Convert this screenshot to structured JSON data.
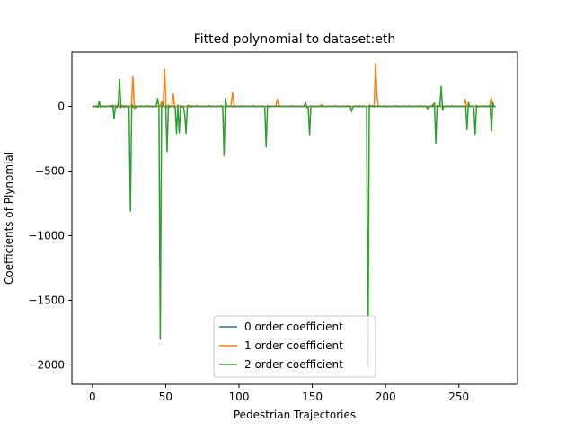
{
  "chart_data": {
    "type": "line",
    "title": "Fitted polynomial to dataset:eth",
    "xlabel": "Pedestrian Trajectories",
    "ylabel": "Coefficients of Plynomial",
    "xlim": [
      -14,
      290
    ],
    "ylim": [
      -2150,
      420
    ],
    "x_ticks": [
      0,
      50,
      100,
      150,
      200,
      250
    ],
    "x_tick_labels": [
      "0",
      "50",
      "100",
      "150",
      "200",
      "250"
    ],
    "y_ticks": [
      0,
      -500,
      -1000,
      -1500,
      -2000
    ],
    "y_tick_labels": [
      "0",
      "−500",
      "−1000",
      "−1500",
      "−2000"
    ],
    "grid": false,
    "legend_position": "lower-center",
    "x_range": [
      0,
      275
    ],
    "series": [
      {
        "name": "0 order coefficient",
        "color": "#1f77b4",
        "values": [
          0,
          0,
          0,
          0,
          0,
          0,
          0,
          0,
          0,
          0,
          0,
          0,
          0,
          0,
          0,
          0,
          0,
          0,
          0,
          0,
          0,
          0,
          0,
          0,
          0,
          0,
          0,
          0,
          0,
          0,
          0,
          0,
          0,
          0,
          0,
          0,
          0,
          0,
          0,
          0,
          0,
          0,
          0,
          0,
          0,
          0,
          0,
          0,
          0,
          0,
          0,
          0,
          0,
          0,
          0,
          0,
          0,
          0,
          0,
          0,
          0,
          0,
          0,
          0,
          0,
          0,
          0,
          0,
          0,
          0,
          0,
          0,
          0,
          0,
          0,
          0,
          0,
          0,
          0,
          0,
          0,
          0,
          0,
          0,
          0,
          0,
          0,
          0,
          0,
          0,
          0,
          0,
          0,
          0,
          0,
          0,
          0,
          0,
          0,
          0,
          0,
          0,
          0,
          0,
          0,
          0,
          0,
          0,
          0,
          0,
          0,
          0,
          0,
          0,
          0,
          0,
          0,
          0,
          0,
          0,
          0,
          0,
          0,
          0,
          0,
          0,
          0,
          0,
          0,
          0,
          0,
          0,
          0,
          0,
          0,
          0,
          0,
          0,
          0,
          0,
          0,
          0,
          0,
          0,
          0,
          0,
          0,
          0,
          0,
          0,
          0,
          0,
          0,
          0,
          0,
          0,
          0,
          0,
          0,
          0,
          0,
          0,
          0,
          0,
          0,
          0,
          0,
          0,
          0,
          0,
          0,
          0,
          0,
          0,
          0,
          0,
          0,
          0,
          0,
          0,
          0,
          0,
          0,
          0,
          0,
          0,
          0,
          0,
          0,
          0,
          0,
          0,
          0,
          0,
          0,
          0,
          0,
          0,
          0,
          0,
          0,
          0,
          0,
          0,
          0,
          0,
          0,
          0,
          0,
          0,
          0,
          0,
          0,
          0,
          0,
          0,
          0,
          0,
          0,
          0,
          0,
          0,
          0,
          0,
          0,
          0,
          0,
          0,
          0,
          0,
          0,
          0,
          0,
          0,
          0,
          0,
          0,
          0,
          0,
          0,
          0,
          0,
          0,
          0,
          0,
          0,
          0,
          0,
          0,
          0,
          0,
          0,
          0,
          0,
          0,
          0,
          0,
          0,
          0,
          0,
          0,
          0,
          0,
          0,
          0,
          0,
          0,
          0,
          0
        ]
      },
      {
        "name": "1 order coefficient",
        "color": "#ff7f0e",
        "values": [
          0,
          2,
          1,
          -3,
          2,
          5,
          -2,
          1,
          3,
          -1,
          0,
          2,
          1,
          -3,
          2,
          4,
          0,
          3,
          15,
          -5,
          0,
          8,
          -10,
          5,
          2,
          -3,
          0,
          1,
          230,
          -20,
          5,
          3,
          -2,
          1,
          0,
          2,
          -1,
          0,
          3,
          1,
          -2,
          2,
          0,
          1,
          2,
          -1,
          0,
          3,
          40,
          10,
          285,
          -15,
          3,
          2,
          -1,
          5,
          95,
          -10,
          2,
          1,
          0,
          3,
          -2,
          1,
          0,
          2,
          -1,
          10,
          0,
          3,
          2,
          -1,
          5,
          0,
          1,
          2,
          -3,
          1,
          0,
          2,
          1,
          0,
          -1,
          2,
          0,
          1,
          3,
          -2,
          0,
          1,
          2,
          0,
          -1,
          1,
          0,
          2,
          1,
          110,
          20,
          -5,
          3,
          0,
          2,
          -1,
          1,
          0,
          3,
          -1,
          2,
          0,
          1,
          2,
          0,
          -1,
          1,
          0,
          3,
          1,
          -2,
          0,
          1,
          2,
          0,
          -1,
          1,
          0,
          3,
          1,
          55,
          2,
          0,
          -1,
          1,
          0,
          2,
          1,
          0,
          3,
          -1,
          2,
          0,
          1,
          2,
          0,
          -1,
          1,
          0,
          3,
          1,
          -2,
          0,
          1,
          2,
          0,
          -1,
          1,
          0,
          3,
          5,
          15,
          2,
          0,
          -1,
          1,
          0,
          2,
          1,
          0,
          3,
          -1,
          2,
          0,
          1,
          2,
          0,
          -1,
          1,
          0,
          3,
          1,
          -2,
          0,
          1,
          2,
          0,
          -1,
          1,
          0,
          3,
          1,
          2,
          0,
          1,
          2,
          5,
          10,
          330,
          80,
          0,
          1,
          2,
          0,
          -1,
          1,
          0,
          3,
          1,
          -2,
          0,
          1,
          2,
          0,
          -1,
          1,
          0,
          3,
          1,
          2,
          0,
          1,
          2,
          0,
          -1,
          1,
          0,
          3,
          1,
          -2,
          0,
          1,
          2,
          0,
          -1,
          1,
          0,
          3,
          20,
          5,
          0,
          1,
          2,
          0,
          -1,
          1,
          0,
          3,
          1,
          -2,
          0,
          1,
          2,
          0,
          -1,
          1,
          0,
          3,
          1,
          2,
          55,
          1,
          2,
          0,
          -1,
          1,
          0,
          3,
          1,
          -2,
          0,
          1,
          2,
          0,
          -1,
          1,
          0,
          3,
          65,
          5,
          0,
          1
        ]
      },
      {
        "name": "2 order coefficient",
        "color": "#2ca02c",
        "values": [
          0,
          -2,
          -3,
          5,
          -8,
          40,
          -5,
          2,
          0,
          -3,
          1,
          0,
          2,
          5,
          -3,
          10,
          -95,
          5,
          -8,
          10,
          210,
          -10,
          5,
          2,
          -3,
          0,
          -5,
          2,
          -810,
          15,
          -5,
          2,
          -10,
          3,
          0,
          -2,
          5,
          0,
          -3,
          2,
          5,
          -2,
          0,
          3,
          -5,
          0,
          2,
          -1,
          60,
          5,
          -1800,
          10,
          20,
          -5,
          3,
          -350,
          10,
          -5,
          2,
          3,
          0,
          -5,
          -210,
          10,
          -205,
          5,
          -5,
          0,
          -60,
          -210,
          5,
          0,
          2,
          -5,
          3,
          0,
          -2,
          5,
          0,
          -3,
          2,
          0,
          -1,
          3,
          0,
          -2,
          5,
          0,
          -3,
          2,
          0,
          -1,
          3,
          0,
          -2,
          5,
          0,
          -380,
          60,
          0,
          -2,
          5,
          0,
          -3,
          2,
          0,
          -1,
          3,
          0,
          -2,
          5,
          0,
          -3,
          2,
          0,
          -1,
          3,
          0,
          -2,
          5,
          0,
          -3,
          2,
          0,
          -1,
          3,
          0,
          -2,
          -315,
          5,
          0,
          -3,
          2,
          0,
          -1,
          3,
          0,
          -2,
          5,
          0,
          -3,
          2,
          0,
          -1,
          3,
          0,
          -2,
          5,
          0,
          -3,
          2,
          0,
          -1,
          3,
          0,
          -2,
          5,
          30,
          -10,
          -5,
          -220,
          5,
          0,
          -3,
          2,
          0,
          -1,
          3,
          0,
          -2,
          5,
          0,
          -3,
          2,
          0,
          -1,
          3,
          0,
          -2,
          5,
          0,
          -3,
          2,
          0,
          -1,
          3,
          0,
          -2,
          5,
          0,
          -3,
          -40,
          0,
          -1,
          3,
          0,
          -2,
          5,
          0,
          -3,
          2,
          0,
          -1,
          -2030,
          10,
          -2,
          5,
          0,
          -3,
          2,
          0,
          -1,
          3,
          0,
          -2,
          5,
          0,
          -3,
          2,
          0,
          -1,
          3,
          0,
          -2,
          5,
          0,
          -3,
          2,
          0,
          -1,
          3,
          0,
          -2,
          5,
          0,
          -3,
          2,
          0,
          -1,
          3,
          0,
          -2,
          5,
          0,
          -3,
          2,
          0,
          -20,
          3,
          0,
          -2,
          10,
          25,
          -285,
          5,
          0,
          0,
          155,
          -30,
          2,
          0,
          -1,
          3,
          0,
          -2,
          5,
          0,
          -3,
          2,
          0,
          -1,
          3,
          0,
          -2,
          5,
          0,
          -180,
          30,
          0,
          -1,
          3,
          -10,
          -215,
          5,
          0,
          -3,
          2,
          0,
          -1,
          3,
          0,
          -2,
          5,
          0,
          -190,
          30,
          0,
          -5
        ]
      }
    ]
  }
}
